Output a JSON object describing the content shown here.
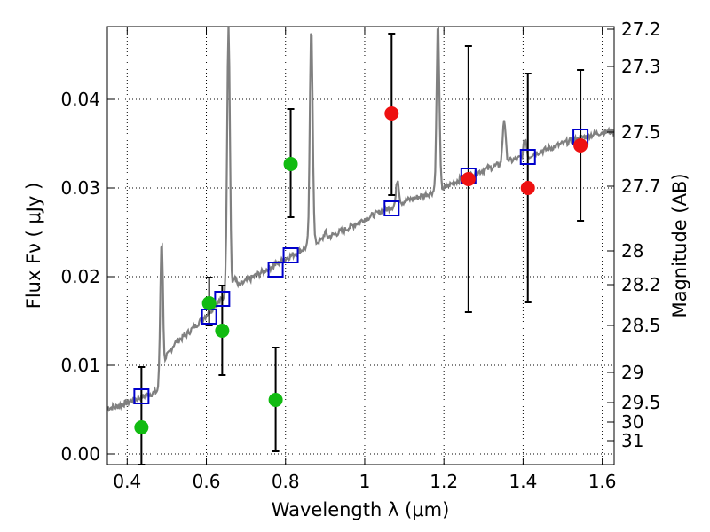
{
  "chart_data": {
    "type": "scatter",
    "title": "",
    "xlabel": "Wavelength  λ (μm)",
    "ylabel": "Flux  Fν  ( μJy )",
    "y2label": "Magnitude (AB)",
    "xlim": [
      0.35,
      1.63
    ],
    "ylim": [
      -0.0012,
      0.0482
    ],
    "grid": true,
    "x_ticks": [
      0.4,
      0.6,
      0.8,
      1.0,
      1.2,
      1.4,
      1.6
    ],
    "x_tick_labels": [
      "0.4",
      "0.6",
      "0.8",
      "1",
      "1.2",
      "1.4",
      "1.6"
    ],
    "y_ticks": [
      0.0,
      0.01,
      0.02,
      0.03,
      0.04
    ],
    "y_tick_labels": [
      "0.00",
      "0.01",
      "0.02",
      "0.03",
      "0.04"
    ],
    "y2_ticks": [
      {
        "label": "27.2",
        "flux": 0.0479
      },
      {
        "label": "27.3",
        "flux": 0.0437
      },
      {
        "label": "27.5",
        "flux": 0.0363
      },
      {
        "label": "27.7",
        "flux": 0.0302
      },
      {
        "label": "28",
        "flux": 0.0229
      },
      {
        "label": "28.2",
        "flux": 0.0191
      },
      {
        "label": "28.5",
        "flux": 0.0145
      },
      {
        "label": "29",
        "flux": 0.0092
      },
      {
        "label": "29.5",
        "flux": 0.0058
      },
      {
        "label": "30",
        "flux": 0.0036
      },
      {
        "label": "31",
        "flux": 0.0015
      }
    ],
    "colors": {
      "spectrum": "#808080",
      "model_box": "#0000cc",
      "green": "#11bb11",
      "red": "#ee1111",
      "errorbar": "#000000"
    },
    "spectrum": {
      "continuum": [
        [
          0.35,
          0.0052
        ],
        [
          0.37,
          0.0053
        ],
        [
          0.4,
          0.0058
        ],
        [
          0.43,
          0.0063
        ],
        [
          0.46,
          0.0068
        ],
        [
          0.48,
          0.0071
        ],
        [
          0.49,
          0.008
        ],
        [
          0.5,
          0.011
        ],
        [
          0.52,
          0.0125
        ],
        [
          0.55,
          0.0135
        ],
        [
          0.58,
          0.0148
        ],
        [
          0.6,
          0.0157
        ],
        [
          0.62,
          0.0167
        ],
        [
          0.64,
          0.0175
        ],
        [
          0.66,
          0.0183
        ],
        [
          0.7,
          0.0195
        ],
        [
          0.74,
          0.0205
        ],
        [
          0.78,
          0.0215
        ],
        [
          0.82,
          0.0225
        ],
        [
          0.86,
          0.0235
        ],
        [
          0.9,
          0.0243
        ],
        [
          0.95,
          0.0253
        ],
        [
          1.0,
          0.0265
        ],
        [
          1.05,
          0.0275
        ],
        [
          1.1,
          0.0285
        ],
        [
          1.15,
          0.0292
        ],
        [
          1.2,
          0.03
        ],
        [
          1.25,
          0.0312
        ],
        [
          1.3,
          0.032
        ],
        [
          1.35,
          0.0328
        ],
        [
          1.4,
          0.0335
        ],
        [
          1.45,
          0.0342
        ],
        [
          1.5,
          0.035
        ],
        [
          1.55,
          0.0357
        ],
        [
          1.6,
          0.0363
        ],
        [
          1.63,
          0.0364
        ]
      ],
      "lines": [
        [
          0.487,
          0.0242
        ],
        [
          0.656,
          0.0485
        ],
        [
          0.672,
          0.02
        ],
        [
          0.865,
          0.0485
        ],
        [
          0.9,
          0.025
        ],
        [
          1.083,
          0.031
        ],
        [
          1.185,
          0.0485
        ],
        [
          1.352,
          0.0378
        ],
        [
          1.36,
          0.0332
        ],
        [
          1.405,
          0.0356
        ],
        [
          1.415,
          0.0335
        ]
      ]
    },
    "model_points": [
      {
        "x": 0.436,
        "y": 0.0065
      },
      {
        "x": 0.607,
        "y": 0.0155
      },
      {
        "x": 0.64,
        "y": 0.0175
      },
      {
        "x": 0.775,
        "y": 0.0208
      },
      {
        "x": 0.813,
        "y": 0.0224
      },
      {
        "x": 1.068,
        "y": 0.0277
      },
      {
        "x": 1.262,
        "y": 0.0314
      },
      {
        "x": 1.412,
        "y": 0.0335
      },
      {
        "x": 1.545,
        "y": 0.0358
      }
    ],
    "series": [
      {
        "color": "green",
        "points": [
          {
            "x": 0.436,
            "y": 0.003,
            "err_lo": 0.0042,
            "err_hi": 0.0068
          },
          {
            "x": 0.607,
            "y": 0.017,
            "err_lo": 0.0025,
            "err_hi": 0.0029
          },
          {
            "x": 0.64,
            "y": 0.0139,
            "err_lo": 0.005,
            "err_hi": 0.0051
          },
          {
            "x": 0.775,
            "y": 0.0061,
            "err_lo": 0.0058,
            "err_hi": 0.0059
          },
          {
            "x": 0.813,
            "y": 0.0327,
            "err_lo": 0.006,
            "err_hi": 0.0062
          }
        ]
      },
      {
        "color": "red",
        "points": [
          {
            "x": 1.068,
            "y": 0.0384,
            "err_lo": 0.0092,
            "err_hi": 0.009
          },
          {
            "x": 1.262,
            "y": 0.031,
            "err_lo": 0.015,
            "err_hi": 0.015
          },
          {
            "x": 1.412,
            "y": 0.03,
            "err_lo": 0.0129,
            "err_hi": 0.0129
          },
          {
            "x": 1.545,
            "y": 0.0348,
            "err_lo": 0.0085,
            "err_hi": 0.0085
          }
        ]
      }
    ]
  }
}
